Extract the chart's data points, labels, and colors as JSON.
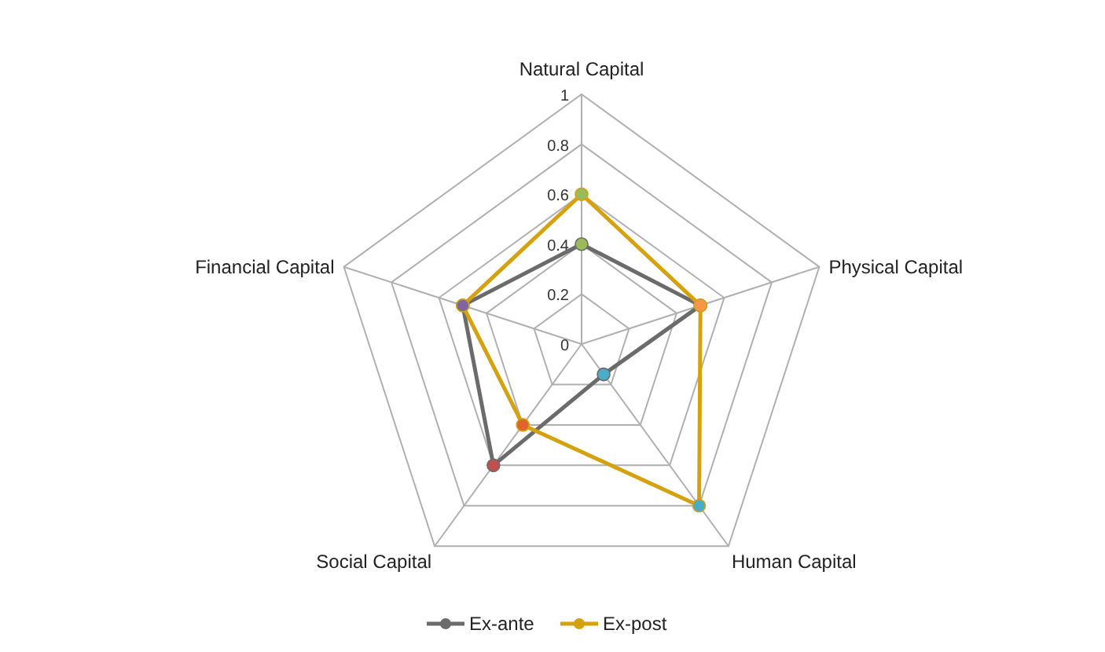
{
  "chart_data": {
    "type": "radar",
    "categories": [
      "Natural Capital",
      "Physical Capital",
      "Human Capital",
      "Social Capital",
      "Financial Capital"
    ],
    "ylim": [
      0,
      1
    ],
    "yticks": [
      0,
      0.2,
      0.4,
      0.6,
      0.8,
      1
    ],
    "grid": true,
    "legend": "bottom",
    "marker": "circle",
    "series": [
      {
        "name": "Ex-ante",
        "color": "#6b6b6b",
        "colors": [
          "#9bbb59",
          "#f79646",
          "#4bacc6",
          "#c0504d",
          "#8064a2"
        ],
        "values": [
          0.4,
          0.5,
          0.15,
          0.6,
          0.5
        ]
      },
      {
        "name": "Ex-post",
        "color": "#d4a20f",
        "colors": [
          "#9bbb59",
          "#f79646",
          "#4bacc6",
          "#e0642f",
          "#8064a2"
        ],
        "values": [
          0.6,
          0.5,
          0.8,
          0.4,
          0.5
        ]
      }
    ]
  }
}
